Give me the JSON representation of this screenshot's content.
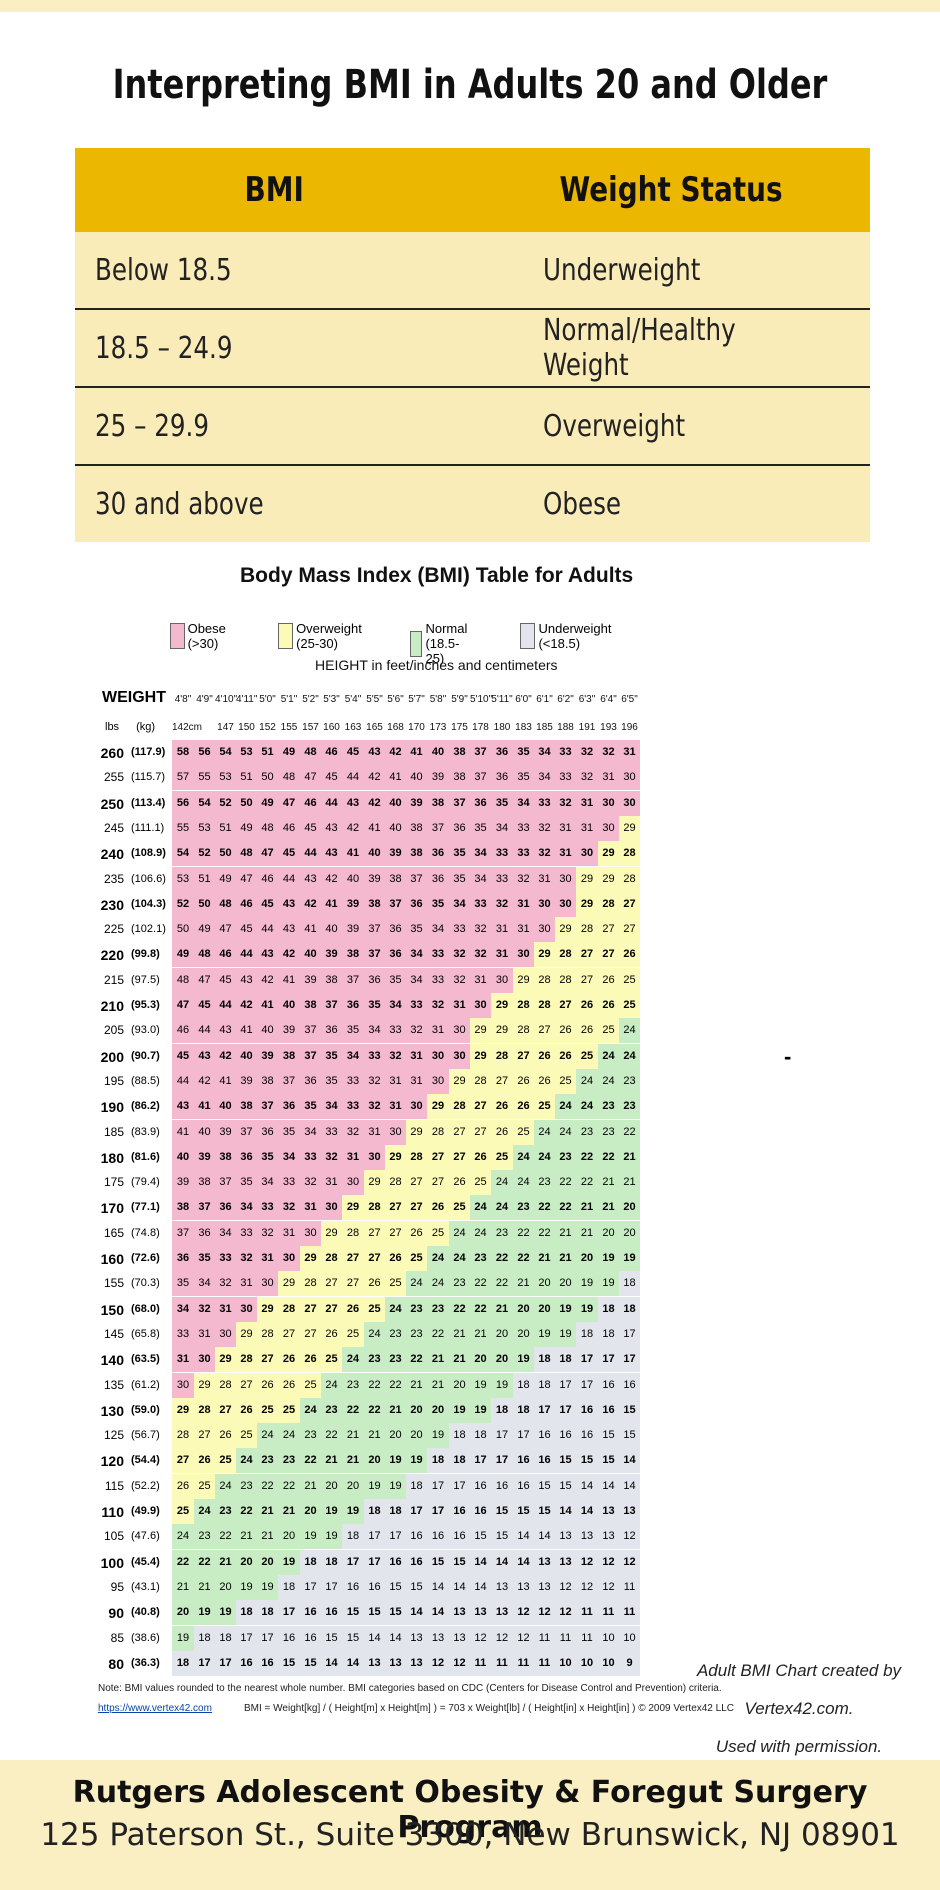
{
  "page_title": "Interpreting BMI in Adults 20 and Older",
  "status_table": {
    "headers": [
      "BMI",
      "Weight Status"
    ],
    "rows": [
      [
        "Below 18.5",
        "Underweight"
      ],
      [
        "18.5 – 24.9",
        "Normal/Healthy Weight"
      ],
      [
        "25 – 29.9",
        "Overweight"
      ],
      [
        "30 and above",
        "Obese"
      ]
    ]
  },
  "bmi_chart": {
    "title": "Body Mass Index (BMI) Table for Adults",
    "legend": [
      {
        "label": "Obese (>30)",
        "color": "#f4b8cf"
      },
      {
        "label": "Overweight (25-30)",
        "color": "#fbfab6"
      },
      {
        "label": "Normal (18.5-25)",
        "color": "#c8ecc4"
      },
      {
        "label": "Underweight (<18.5)",
        "color": "#e3e5ec"
      }
    ],
    "height_header": "HEIGHT in feet/inches and centimeters",
    "weight_header": "WEIGHT",
    "lbs_label": "lbs",
    "kg_label": "(kg)",
    "heights_ft": [
      "4'8\"",
      "4'9\"",
      "4'10\"",
      "4'11\"",
      "5'0\"",
      "5'1\"",
      "5'2\"",
      "5'3\"",
      "5'4\"",
      "5'5\"",
      "5'6\"",
      "5'7\"",
      "5'8\"",
      "5'9\"",
      "5'10\"",
      "5'11\"",
      "6'0\"",
      "6'1\"",
      "6'2\"",
      "6'3\"",
      "6'4\"",
      "6'5\""
    ],
    "heights_cm": [
      "142cm",
      "",
      "147",
      "150",
      "152",
      "155",
      "157",
      "160",
      "163",
      "165",
      "168",
      "170",
      "173",
      "175",
      "178",
      "180",
      "183",
      "185",
      "188",
      "191",
      "193",
      "196"
    ],
    "weights_lbs": [
      260,
      255,
      250,
      245,
      240,
      235,
      230,
      225,
      220,
      215,
      210,
      205,
      200,
      195,
      190,
      185,
      180,
      175,
      170,
      165,
      160,
      155,
      150,
      145,
      140,
      135,
      130,
      125,
      120,
      115,
      110,
      105,
      100,
      95,
      90,
      85,
      80
    ],
    "weights_kg": [
      "(117.9)",
      "(115.7)",
      "(113.4)",
      "(111.1)",
      "(108.9)",
      "(106.6)",
      "(104.3)",
      "(102.1)",
      "(99.8)",
      "(97.5)",
      "(95.3)",
      "(93.0)",
      "(90.7)",
      "(88.5)",
      "(86.2)",
      "(83.9)",
      "(81.6)",
      "(79.4)",
      "(77.1)",
      "(74.8)",
      "(72.6)",
      "(70.3)",
      "(68.0)",
      "(65.8)",
      "(63.5)",
      "(61.2)",
      "(59.0)",
      "(56.7)",
      "(54.4)",
      "(52.2)",
      "(49.9)",
      "(47.6)",
      "(45.4)",
      "(43.1)",
      "(40.8)",
      "(38.6)",
      "(36.3)"
    ],
    "note": "Note: BMI values rounded to the nearest whole number. BMI categories based on CDC (Centers for Disease Control and Prevention) criteria.",
    "link": "https://www.vertex42.com",
    "formula": "BMI = Weight[kg] / ( Height[m] x Height[m] ) = 703 x Weight[lb] / ( Height[in] x Height[in] )    © 2009 Vertex42 LLC"
  },
  "credit_line1": "Adult BMI Chart created by Vertex42.com.",
  "credit_line2": "Used with permission.",
  "dash_mark": "-",
  "footer": {
    "org": "Rutgers Adolescent Obesity & Foregut Surgery Program",
    "address": "125 Paterson St., Suite 3300, New Brunswick, NJ 08901"
  }
}
